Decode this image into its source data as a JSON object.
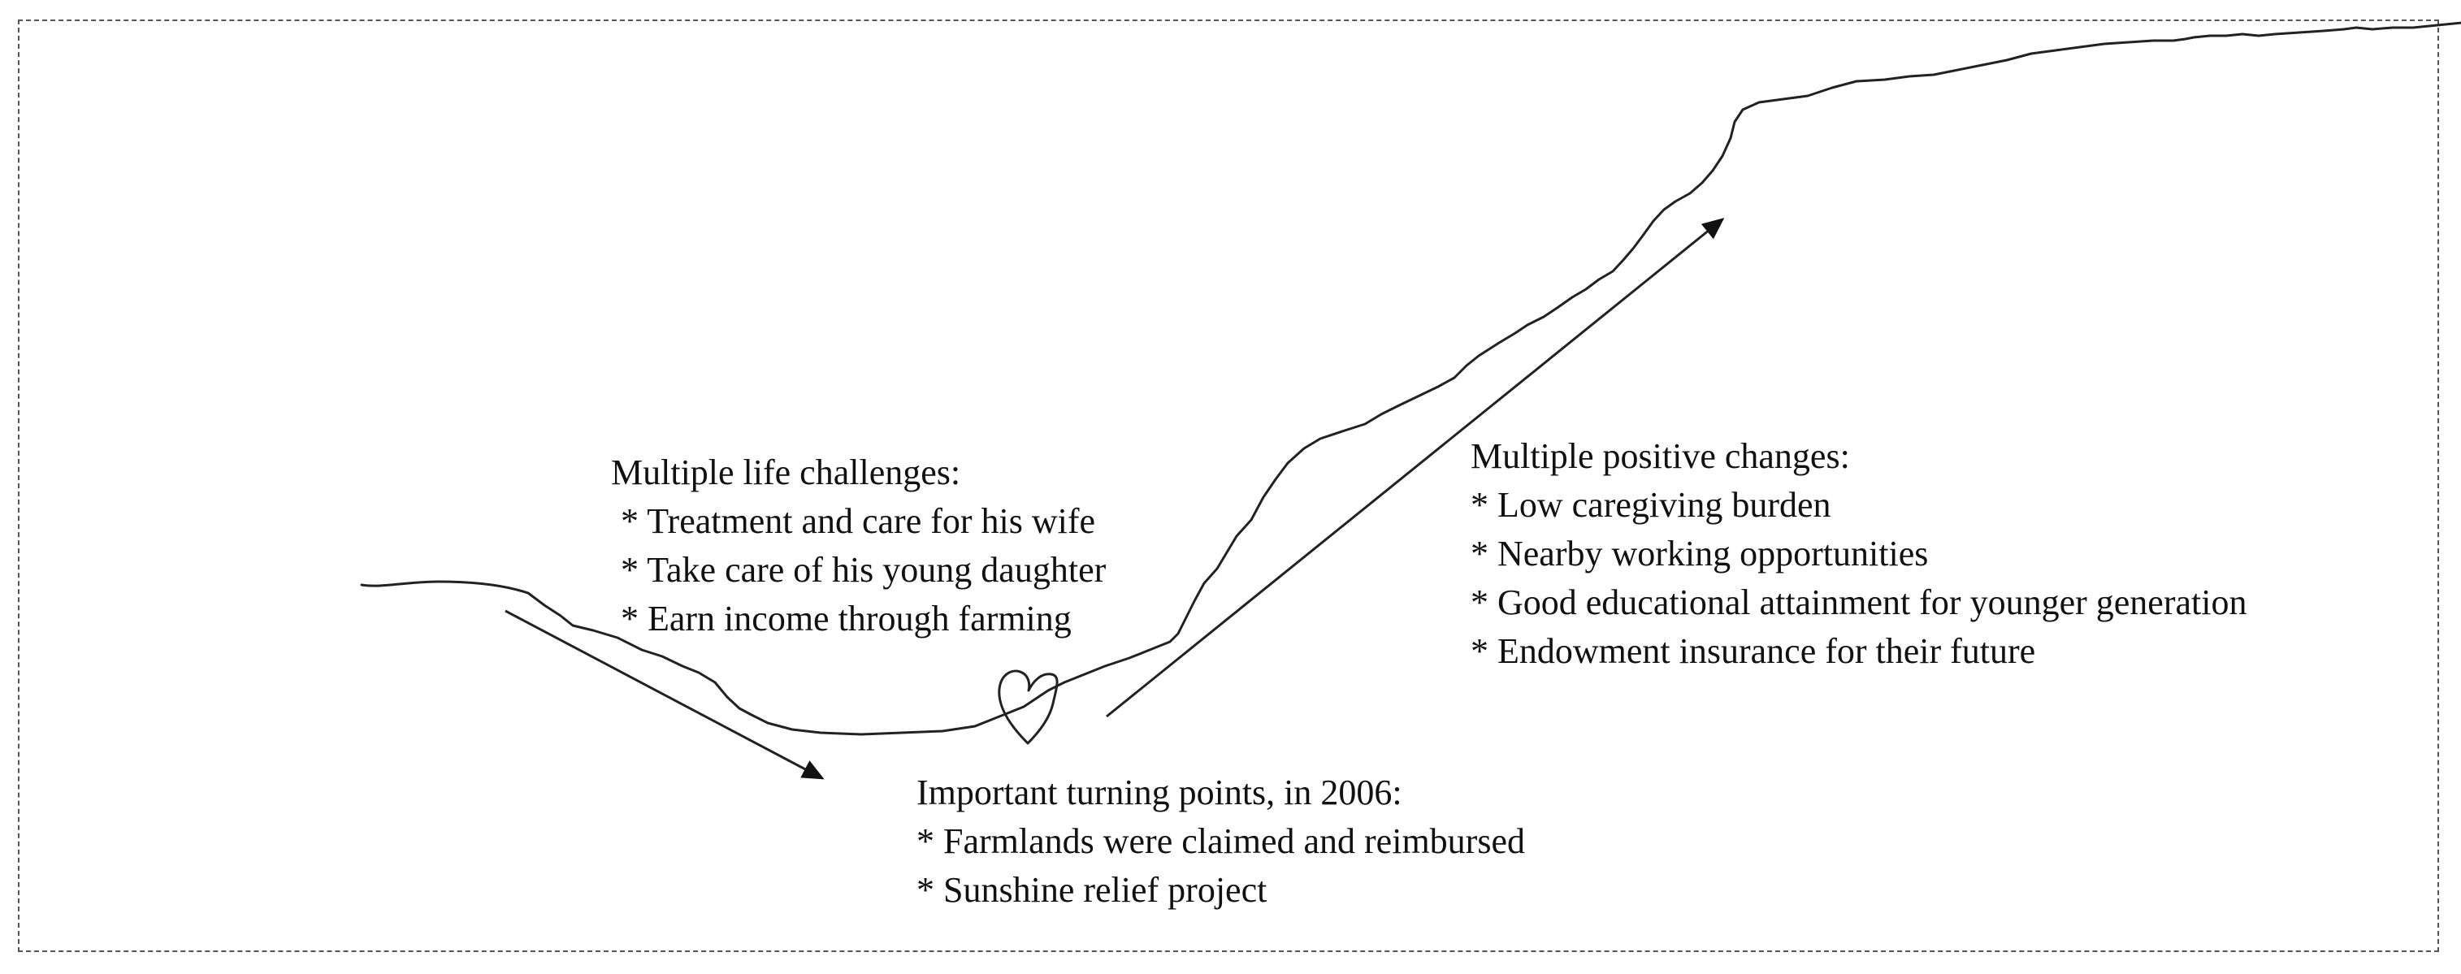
{
  "challenges": {
    "heading": "Multiple life challenges:",
    "items": [
      "* Treatment and care for his wife",
      "* Take care of his young daughter",
      "* Earn income through farming"
    ]
  },
  "positive_changes": {
    "heading": "Multiple positive changes:",
    "items": [
      "* Low caregiving burden",
      "* Nearby working opportunities",
      "* Good educational attainment for younger generation",
      "* Endowment insurance for their future"
    ]
  },
  "turning_points": {
    "heading": "Important turning points, in 2006:",
    "items": [
      "* Farmlands were claimed and reimbursed",
      "* Sunshine relief project"
    ]
  },
  "style": {
    "line_color": "#222222",
    "frame_color": "#555555"
  }
}
